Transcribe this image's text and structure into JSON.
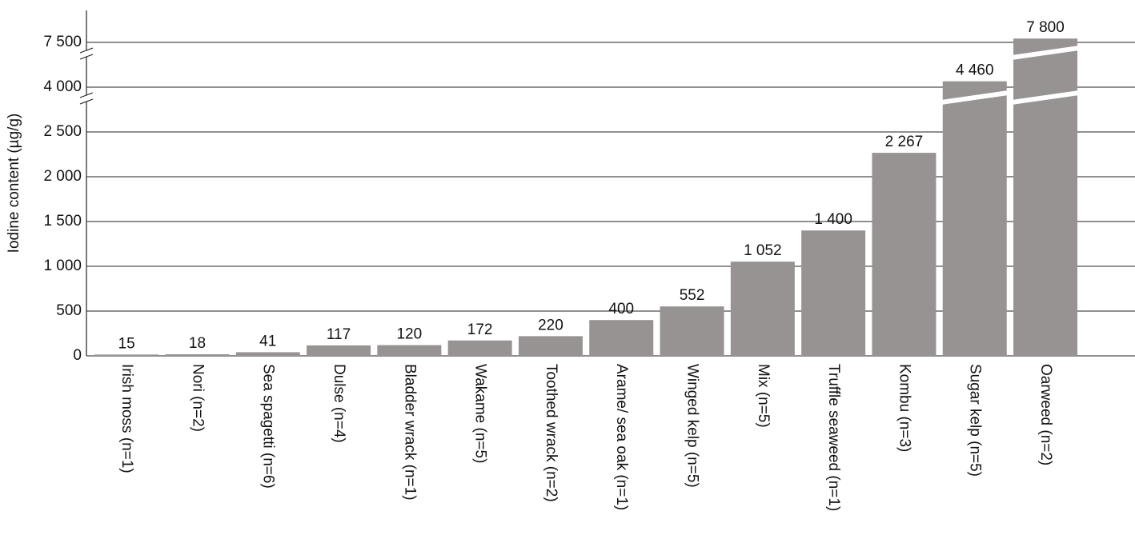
{
  "chart_data": {
    "type": "bar",
    "y_axis_label": "Iodine content (µg/g)",
    "categories": [
      "Irish moss (n=1)",
      "Nori (n=2)",
      "Sea spagetti (n=6)",
      "Dulse (n=4)",
      "Bladder wrack (n=1)",
      "Wakame (n=5)",
      "Toothed wrack (n=2)",
      "Arame/ sea oak (n=1)",
      "Winged kelp (n=5)",
      "Mix (n=5)",
      "Truffle seaweed (n=1)",
      "Kombu (n=3)",
      "Sugar kelp (n=5)",
      "Oarweed (n=2)"
    ],
    "values": [
      15,
      18,
      41,
      117,
      120,
      172,
      220,
      400,
      552,
      1052,
      1400,
      2267,
      4460,
      7800
    ],
    "value_labels": [
      "15",
      "18",
      "41",
      "117",
      "120",
      "172",
      "220",
      "400",
      "552",
      "1 052",
      "1 400",
      "2 267",
      "4 460",
      "7 800"
    ],
    "color": "#979393",
    "ylim": [
      0,
      10000
    ],
    "yticks": [
      0,
      500,
      {
        "value": 1000,
        "label": "1 000"
      },
      {
        "value": 1500,
        "label": "1 500"
      },
      {
        "value": 2000,
        "label": "2 000"
      },
      {
        "value": 2500,
        "label": "2 500"
      },
      {
        "value": 4000,
        "label": "4 000"
      },
      {
        "value": 7500,
        "label": "7 500"
      }
    ],
    "axis_breaks": true,
    "grid": true
  }
}
